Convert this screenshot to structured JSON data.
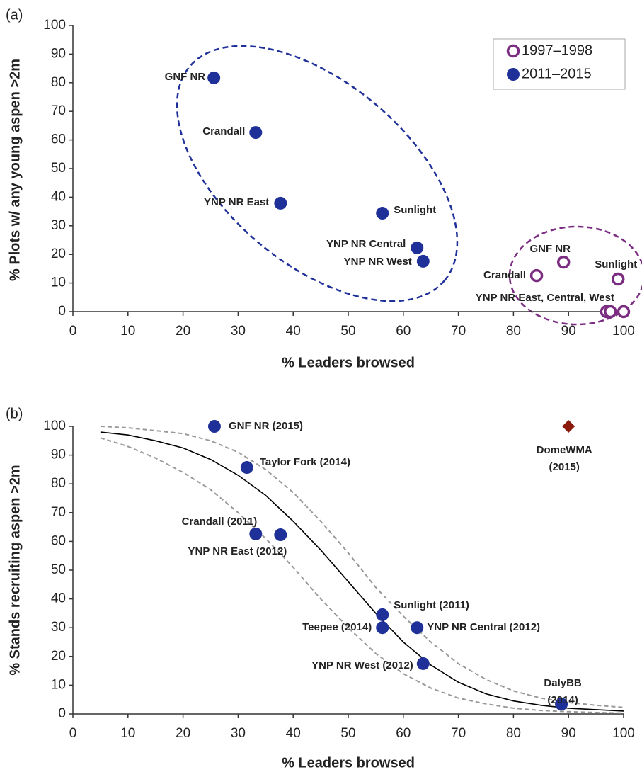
{
  "chart_data": [
    {
      "type": "scatter",
      "panel_label": "(a)",
      "xlabel": "% Leaders browsed",
      "ylabel": "% Plots w/ any young aspen >2m",
      "xlim": [
        0,
        100
      ],
      "xticks": [
        0,
        10,
        20,
        30,
        40,
        50,
        60,
        70,
        80,
        90,
        100
      ],
      "ylim": [
        0,
        100
      ],
      "yticks": [
        0,
        10,
        20,
        30,
        40,
        50,
        60,
        70,
        80,
        90,
        100
      ],
      "legend": "upper right",
      "series": [
        {
          "name": "1997–1998",
          "color": "#7b2d82",
          "marker": "open-circle",
          "x": [
            84.2,
            89.1,
            99.0,
            96.9,
            97.6,
            100
          ],
          "y": [
            12.6,
            17.3,
            11.4,
            0,
            0,
            0
          ],
          "labels": [
            "Crandall",
            "GNF NR",
            "Sunlight",
            "YNP NR East, Central, West",
            null,
            null
          ]
        },
        {
          "name": "2011–2015",
          "color": "#1f3199",
          "marker": "circle",
          "x": [
            25.6,
            33.2,
            37.7,
            56.2,
            62.5,
            63.6
          ],
          "y": [
            81.7,
            62.6,
            37.9,
            34.4,
            22.3,
            17.6
          ],
          "labels": [
            "GNF NR",
            "Crandall",
            "YNP NR East",
            "Sunlight",
            "YNP NR Central",
            "YNP NR West"
          ]
        }
      ]
    },
    {
      "type": "scatter",
      "panel_label": "(b)",
      "xlabel": "% Leaders browsed",
      "ylabel": "% Stands recruiting aspen >2m",
      "xlim": [
        0,
        100
      ],
      "xticks": [
        0,
        10,
        20,
        30,
        40,
        50,
        60,
        70,
        80,
        90,
        100
      ],
      "ylim": [
        0,
        100
      ],
      "yticks": [
        0,
        10,
        20,
        30,
        40,
        50,
        60,
        70,
        80,
        90,
        100
      ],
      "series": [
        {
          "color": "#1f3199",
          "marker": "circle",
          "x": [
            25.7,
            31.6,
            33.2,
            37.7,
            56.2,
            56.2,
            62.5,
            63.6,
            88.7
          ],
          "y": [
            100,
            85.7,
            62.6,
            62.3,
            34.5,
            30.0,
            30.0,
            17.5,
            3.4
          ],
          "labels": [
            [
              "GNF NR (2015)"
            ],
            [
              "Taylor Fork (2014)"
            ],
            [
              "Crandall (2011)"
            ],
            [
              "YNP NR East (2012)"
            ],
            [
              "Sunlight (2011)"
            ],
            [
              "Teepee (2014)"
            ],
            [
              "YNP NR Central (2012)"
            ],
            [
              "YNP NR West (2012)"
            ],
            [
              "DalyBB",
              "(2014)"
            ]
          ]
        },
        {
          "color": "#8b1a0a",
          "marker": "diamond",
          "x": [
            90.0
          ],
          "y": [
            100
          ],
          "labels": [
            [
              "DomeWMA",
              "(2015)"
            ]
          ]
        }
      ],
      "lines": [
        {
          "color": "#000000",
          "dashed": false,
          "x": [
            5,
            10,
            15,
            20,
            25,
            30,
            35,
            40,
            45,
            50,
            55,
            60,
            65,
            70,
            75,
            80,
            85,
            90,
            95,
            100
          ],
          "y": [
            98,
            97,
            95,
            92.5,
            88.5,
            83,
            76,
            67,
            57,
            46,
            35,
            25,
            17,
            11,
            7,
            4.5,
            3,
            2,
            1.5,
            1
          ]
        },
        {
          "color": "#999999",
          "dashed": true,
          "x": [
            5,
            10,
            15,
            20,
            25,
            30,
            35,
            40,
            45,
            50,
            55,
            60,
            65,
            70,
            75,
            80,
            85,
            90,
            95,
            100
          ],
          "y": [
            100,
            99.5,
            98.5,
            97.5,
            95,
            91,
            85,
            77,
            67,
            56,
            44,
            34,
            25,
            17.5,
            12,
            8,
            5.5,
            4,
            3,
            2.3
          ]
        },
        {
          "color": "#999999",
          "dashed": true,
          "x": [
            5,
            10,
            15,
            20,
            25,
            30,
            35,
            40,
            45,
            50,
            55,
            60,
            65,
            70,
            75,
            80,
            85,
            90,
            95,
            100
          ],
          "y": [
            96,
            93,
            89,
            84,
            78,
            70,
            61,
            51,
            40,
            30,
            21,
            14,
            9,
            5.5,
            3.5,
            2,
            1.2,
            0.8,
            0.5,
            0.3
          ]
        }
      ]
    }
  ]
}
